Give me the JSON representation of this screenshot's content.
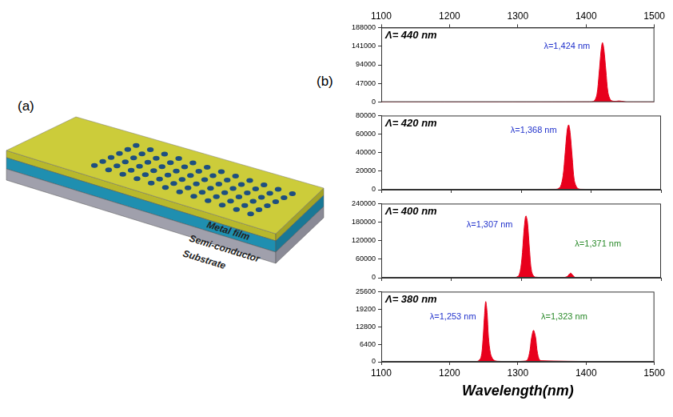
{
  "figure": {
    "panel_labels": [
      "(a)",
      "(b)"
    ]
  },
  "diagram": {
    "layers": [
      "Metal film",
      "Semi-conductor",
      "Substrate"
    ]
  },
  "chart_data": [
    {
      "type": "area",
      "title": "Λ= 440 nm",
      "x": [
        1100,
        1405,
        1412,
        1416,
        1419,
        1422,
        1424,
        1426,
        1429,
        1432,
        1436,
        1442,
        1448,
        1455,
        1460,
        1500
      ],
      "values": [
        0,
        500,
        3000,
        20000,
        70000,
        130000,
        150000,
        135000,
        80000,
        25000,
        5000,
        2000,
        3000,
        1500,
        0,
        0
      ],
      "color": "#e8001c",
      "xlim": [
        1100,
        1500
      ],
      "xticks": [
        1100,
        1200,
        1300,
        1400,
        1500
      ],
      "ylim": [
        0,
        188000
      ],
      "yticks": [
        0,
        47000,
        94000,
        141000,
        188000
      ],
      "grid": false,
      "annotations": [
        {
          "text": "λ=1,424 nm",
          "x": 1372,
          "y": 140000,
          "color": "#2233cc"
        }
      ]
    },
    {
      "type": "area",
      "title": "Λ= 420 nm",
      "x": [
        1100,
        1350,
        1356,
        1360,
        1363,
        1366,
        1368,
        1370,
        1373,
        1376,
        1380,
        1385,
        1500
      ],
      "values": [
        0,
        500,
        3000,
        15000,
        40000,
        65000,
        70000,
        62000,
        35000,
        10000,
        2000,
        500,
        0
      ],
      "color": "#e8001c",
      "xlim": [
        1100,
        1500
      ],
      "xticks": [
        1100,
        1200,
        1300,
        1400,
        1500
      ],
      "ylim": [
        0,
        80000
      ],
      "yticks": [
        0,
        20000,
        40000,
        60000,
        80000
      ],
      "grid": false,
      "tick_labels": "y",
      "annotations": [
        {
          "text": "λ=1,368 nm",
          "x": 1318,
          "y": 64000,
          "color": "#2233cc"
        }
      ]
    },
    {
      "type": "area",
      "title": "Λ= 400 nm",
      "x": [
        1100,
        1290,
        1297,
        1301,
        1304,
        1306,
        1307,
        1309,
        1312,
        1315,
        1320,
        1360,
        1366,
        1369,
        1371,
        1374,
        1378,
        1500
      ],
      "values": [
        0,
        500,
        8000,
        60000,
        150000,
        195000,
        200000,
        180000,
        90000,
        20000,
        2000,
        500,
        4000,
        12000,
        15000,
        8000,
        500,
        0
      ],
      "color": "#e8001c",
      "xlim": [
        1100,
        1500
      ],
      "xticks": [
        1100,
        1200,
        1300,
        1400,
        1500
      ],
      "ylim": [
        0,
        240000
      ],
      "yticks": [
        0,
        60000,
        120000,
        180000,
        240000
      ],
      "grid": false,
      "tick_labels": "y",
      "annotations": [
        {
          "text": "λ=1,307 nm",
          "x": 1255,
          "y": 170000,
          "color": "#2233cc"
        },
        {
          "text": "λ=1,371 nm",
          "x": 1410,
          "y": 110000,
          "color": "#2a8a2a"
        }
      ]
    },
    {
      "type": "area",
      "title": "Λ= 380 nm",
      "x": [
        1100,
        1240,
        1246,
        1249,
        1251,
        1253,
        1255,
        1257,
        1260,
        1264,
        1270,
        1312,
        1317,
        1320,
        1323,
        1326,
        1329,
        1334,
        1500
      ],
      "values": [
        0,
        100,
        1500,
        8000,
        16000,
        22000,
        18000,
        9000,
        3000,
        800,
        200,
        300,
        3000,
        8500,
        11500,
        9000,
        3000,
        400,
        0
      ],
      "color": "#e8001c",
      "x_label": "Wavelength(nm)",
      "xlim": [
        1100,
        1500
      ],
      "xticks": [
        1100,
        1200,
        1300,
        1400,
        1500
      ],
      "ylim": [
        0,
        25600
      ],
      "yticks": [
        0,
        6400,
        12800,
        19200,
        25600
      ],
      "grid": false,
      "annotations": [
        {
          "text": "λ=1,253 nm",
          "x": 1205,
          "y": 16500,
          "color": "#2233cc"
        },
        {
          "text": "λ=1,323 nm",
          "x": 1368,
          "y": 16500,
          "color": "#2a8a2a"
        }
      ]
    }
  ]
}
